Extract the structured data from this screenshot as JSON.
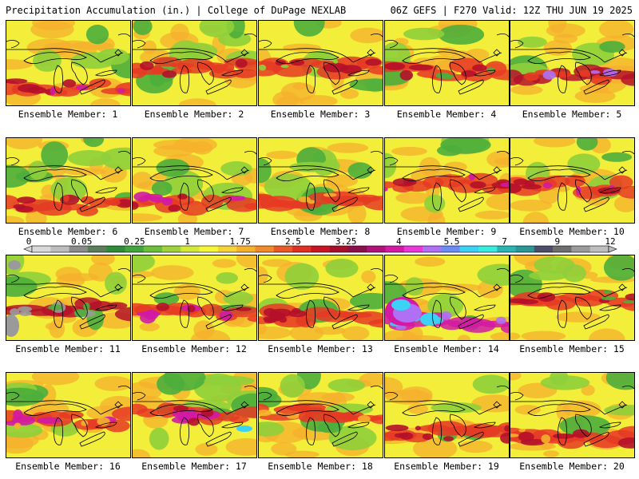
{
  "header": {
    "left": "Precipitation Accumulation (in.) | College of DuPage NEXLAB",
    "right": "06Z GEFS | F270 Valid: 12Z THU JUN 19 2025"
  },
  "members": [
    "Ensemble Member: 1",
    "Ensemble Member: 2",
    "Ensemble Member: 3",
    "Ensemble Member: 4",
    "Ensemble Member: 5",
    "Ensemble Member: 6",
    "Ensemble Member: 7",
    "Ensemble Member: 8",
    "Ensemble Member: 9",
    "Ensemble Member: 10",
    "Ensemble Member: 11",
    "Ensemble Member: 12",
    "Ensemble Member: 13",
    "Ensemble Member: 14",
    "Ensemble Member: 15",
    "Ensemble Member: 16",
    "Ensemble Member: 17",
    "Ensemble Member: 18",
    "Ensemble Member: 19",
    "Ensemble Member: 20"
  ],
  "colorbar": {
    "labels": [
      "0",
      "0.05",
      "0.25",
      "1",
      "1.75",
      "2.5",
      "3.25",
      "4",
      "5.5",
      "7",
      "9",
      "12"
    ],
    "colors": [
      "#d9d9d9",
      "#bdbdbd",
      "#8c8c8c",
      "#5a7d5a",
      "#2e8b3a",
      "#3fa53c",
      "#6cbf3a",
      "#9fd23b",
      "#d4e83a",
      "#f5f53a",
      "#f7d33a",
      "#f5b02e",
      "#f08a2a",
      "#ea5a28",
      "#e03024",
      "#c81424",
      "#a50f2a",
      "#8a0f4a",
      "#b0127a",
      "#d21aa5",
      "#e838d8",
      "#b070f5",
      "#6c8cf5",
      "#3cd2f5",
      "#38ece0",
      "#2ab4b4",
      "#2a9696",
      "#4e4e6a",
      "#6e6e6e",
      "#9a9a9a",
      "#bebebe"
    ]
  },
  "panel_palette": {
    "base_yellow": "#f2ee3a",
    "green": "#4cae3c",
    "light_green": "#8fcf3b",
    "orange": "#f5b02e",
    "red": "#e63a24",
    "dark_red": "#b5102a",
    "magenta": "#d21aa5",
    "purple": "#b070f5",
    "cyan": "#3cd2f5",
    "gray": "#9a9a9a",
    "outline": "#000000"
  }
}
